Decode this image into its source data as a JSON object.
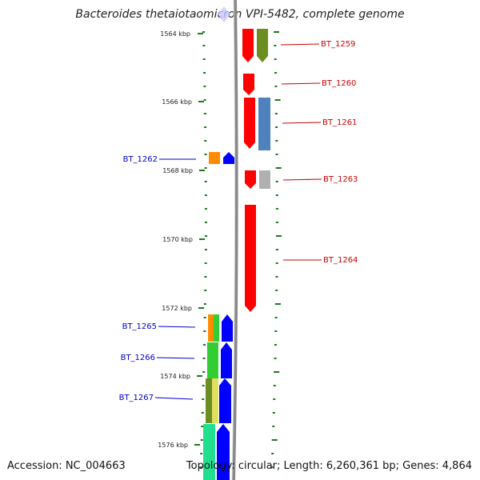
{
  "title": "Bacteroides thetaiotaomicron VPI-5482, complete genome",
  "footer": {
    "accession": "Accession: NC_004663",
    "topology": "Topology: circular; Length: 6,260,361 bp; Genes: 4,864"
  },
  "colors": {
    "forward_label": "#cc0000",
    "reverse_label": "#0000cc",
    "backbone": "#888888",
    "tick": "#1a7a1a"
  },
  "ruler": {
    "labels": [
      "1564 kbp",
      "1566 kbp",
      "1568 kbp",
      "1570 kbp",
      "1572 kbp",
      "1574 kbp",
      "1576 kbp"
    ]
  },
  "genes": [
    {
      "name": "BT_1259",
      "strand": "forward",
      "ring": "outer"
    },
    {
      "name": "BT_1260",
      "strand": "forward",
      "ring": "outer"
    },
    {
      "name": "BT_1261",
      "strand": "forward",
      "ring": "outer"
    },
    {
      "name": "BT_1262",
      "strand": "reverse",
      "ring": "inner"
    },
    {
      "name": "BT_1263",
      "strand": "forward",
      "ring": "outer"
    },
    {
      "name": "BT_1264",
      "strand": "forward",
      "ring": "outer"
    },
    {
      "name": "BT_1265",
      "strand": "reverse",
      "ring": "inner"
    },
    {
      "name": "BT_1266",
      "strand": "reverse",
      "ring": "inner"
    },
    {
      "name": "BT_1267",
      "strand": "reverse",
      "ring": "inner"
    }
  ]
}
